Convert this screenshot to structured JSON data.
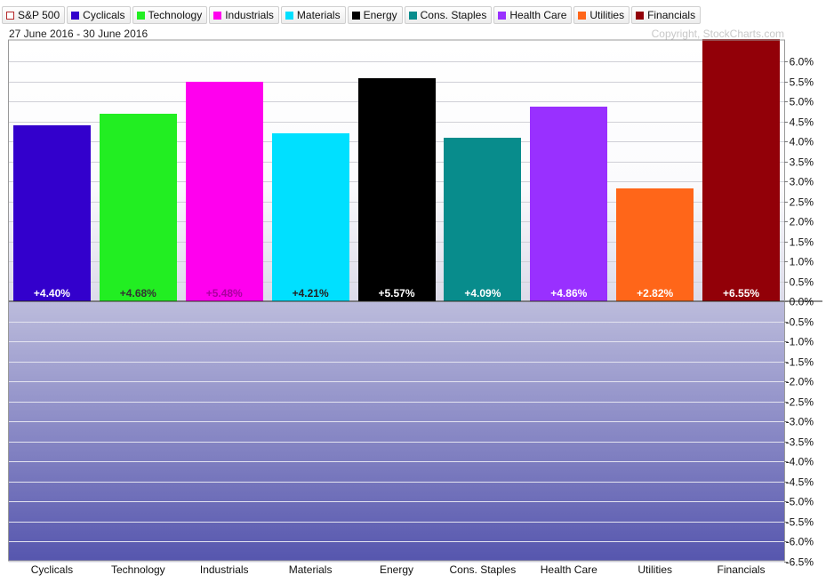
{
  "legend": [
    {
      "label": "S&P 500",
      "color": "#b5282a",
      "outline": true
    },
    {
      "label": "Cyclicals",
      "color": "#3300cc"
    },
    {
      "label": "Technology",
      "color": "#22ee22"
    },
    {
      "label": "Industrials",
      "color": "#ff00ee"
    },
    {
      "label": "Materials",
      "color": "#00e0ff"
    },
    {
      "label": "Energy",
      "color": "#000000"
    },
    {
      "label": "Cons. Staples",
      "color": "#088c8c"
    },
    {
      "label": "Health Care",
      "color": "#9930ff"
    },
    {
      "label": "Utilities",
      "color": "#ff6619"
    },
    {
      "label": "Financials",
      "color": "#920008"
    }
  ],
  "header": {
    "date_range": "27 June 2016 - 30 June 2016",
    "copyright": "Copyright, StockCharts.com"
  },
  "chart_data": {
    "type": "bar",
    "categories": [
      "Cyclicals",
      "Technology",
      "Industrials",
      "Materials",
      "Energy",
      "Cons. Staples",
      "Health Care",
      "Utilities",
      "Financials"
    ],
    "values": [
      4.4,
      4.68,
      5.48,
      4.21,
      5.57,
      4.09,
      4.86,
      2.82,
      6.55
    ],
    "value_labels": [
      "+4.40%",
      "+4.68%",
      "+5.48%",
      "+4.21%",
      "+5.57%",
      "+4.09%",
      "+4.86%",
      "+2.82%",
      "+6.55%"
    ],
    "colors": [
      "#3300cc",
      "#22ee22",
      "#ff00ee",
      "#00e0ff",
      "#000000",
      "#088c8c",
      "#9930ff",
      "#ff6619",
      "#920008"
    ],
    "label_colors": [
      "#ffffff",
      "#333333",
      "#aa00a0",
      "#222222",
      "#ffffff",
      "#ffffff",
      "#ffffff",
      "#ffffff",
      "#ffffff"
    ],
    "y_ticks": [
      "6.0%",
      "5.5%",
      "5.0%",
      "4.5%",
      "4.0%",
      "3.5%",
      "3.0%",
      "2.5%",
      "2.0%",
      "1.5%",
      "1.0%",
      "0.5%",
      "0.0%",
      "-0.5%",
      "-1.0%",
      "-1.5%",
      "-2.0%",
      "-2.5%",
      "-3.0%",
      "-3.5%",
      "-4.0%",
      "-4.5%",
      "-5.0%",
      "-5.5%",
      "-6.0%",
      "-6.5%"
    ],
    "y_tick_values": [
      6.0,
      5.5,
      5.0,
      4.5,
      4.0,
      3.5,
      3.0,
      2.5,
      2.0,
      1.5,
      1.0,
      0.5,
      0.0,
      -0.5,
      -1.0,
      -1.5,
      -2.0,
      -2.5,
      -3.0,
      -3.5,
      -4.0,
      -4.5,
      -5.0,
      -5.5,
      -6.0,
      -6.5
    ],
    "ylim": [
      -6.6,
      6.55
    ],
    "grid": true,
    "legend_position": "top-left",
    "y_axis_position": "right"
  }
}
